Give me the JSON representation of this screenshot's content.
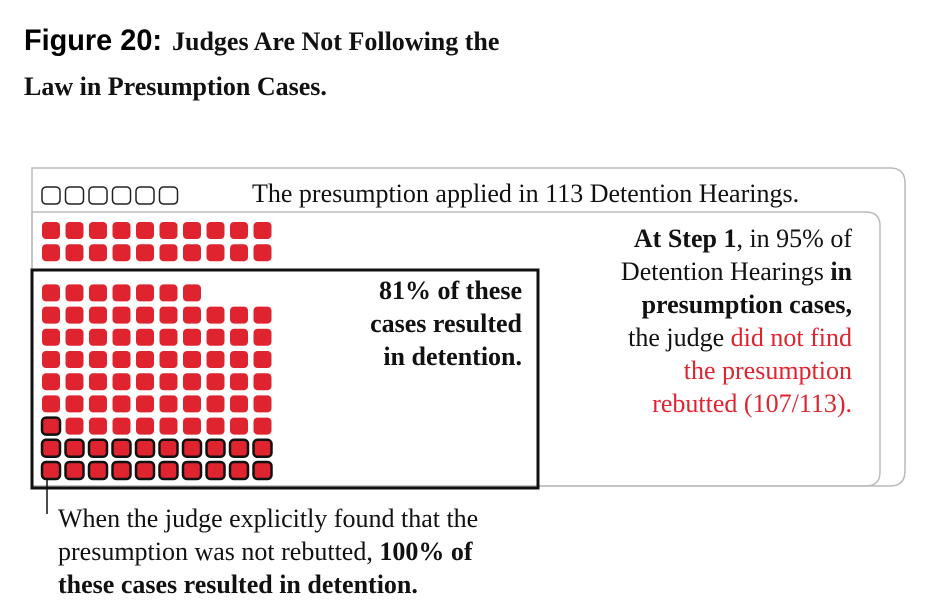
{
  "header": {
    "figure": "Figure 20:",
    "title_lines": [
      "Judges Are Not Following the",
      "Law in Presumption Cases."
    ]
  },
  "legend_note": "The presumption applied in 113 Detention Hearings.",
  "step_note": {
    "lines": [
      [
        "At Step 1",
        ", in 95% of"
      ],
      [
        "Detention Hearings ",
        "in"
      ],
      [
        "presumption cases,"
      ],
      [
        "the judge ",
        " did not find"
      ],
      [
        "the presumption"
      ],
      [
        "rebutted (107/113)."
      ]
    ]
  },
  "box_note": {
    "lines": [
      "81% of these",
      "cases resulted",
      "in detention."
    ]
  },
  "footnote": {
    "lines": [
      [
        "When the judge explicitly found that the"
      ],
      [
        "presumption was not rebutted, ",
        "100% of"
      ],
      [
        "these cases resulted in detention."
      ]
    ]
  },
  "waffle": {
    "groups": [
      {
        "count": 6,
        "style": "empty"
      },
      {
        "count": 20,
        "style": "red"
      },
      {
        "count": 66,
        "style": "red"
      },
      {
        "count": 21,
        "style": "outlined"
      }
    ]
  }
}
